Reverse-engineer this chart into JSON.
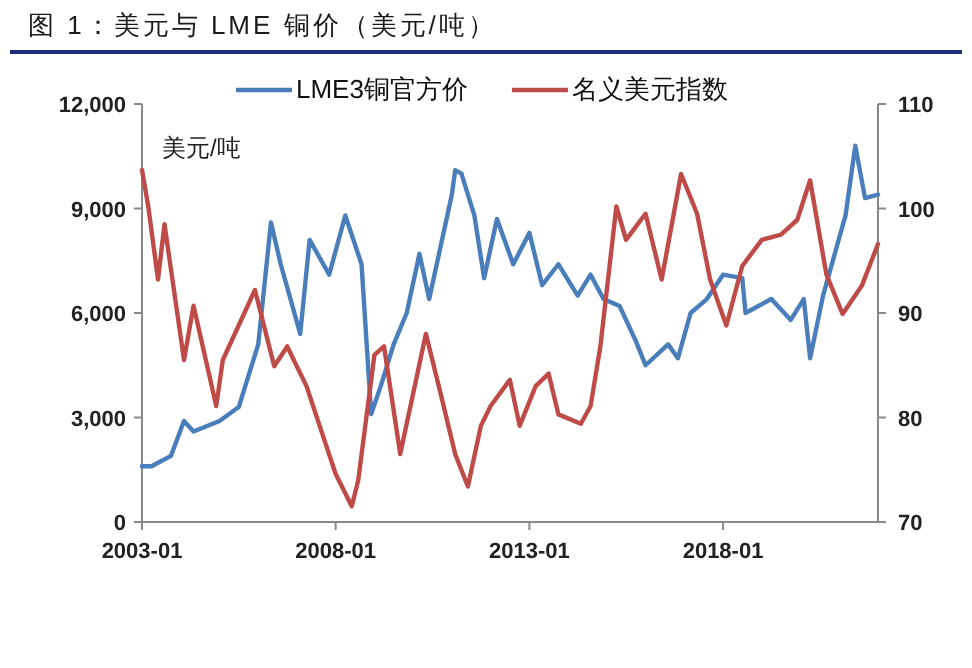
{
  "chart_data": {
    "type": "line",
    "title": "图 1：美元与 LME 铜价（美元/吨）",
    "ylabel": "美元/吨",
    "xlim": [
      "2003-01",
      "2022-01"
    ],
    "xticks": [
      "2003-01",
      "2008-01",
      "2013-01",
      "2018-01"
    ],
    "ylim": [
      0,
      12000
    ],
    "yticks": [
      {
        "value": 0,
        "label": "0"
      },
      {
        "value": 3000,
        "label": "3,000"
      },
      {
        "value": 6000,
        "label": "6,000"
      },
      {
        "value": 9000,
        "label": "9,000"
      },
      {
        "value": 12000,
        "label": "12,000"
      }
    ],
    "y2lim": [
      70,
      110
    ],
    "y2ticks": [
      70,
      80,
      90,
      100,
      110
    ],
    "legend": "top",
    "grid": false,
    "marker": "none",
    "line_style": "solid",
    "series": [
      {
        "name": "LME3铜官方价",
        "color": "#4a7ebb",
        "x": [
          "2003-01",
          "2003-04",
          "2003-10",
          "2004-02",
          "2004-05",
          "2005-01",
          "2005-07",
          "2006-01",
          "2006-05",
          "2006-08",
          "2007-02",
          "2007-05",
          "2007-11",
          "2008-04",
          "2008-09",
          "2008-12",
          "2009-03",
          "2009-07",
          "2009-11",
          "2010-03",
          "2010-06",
          "2011-01",
          "2011-02",
          "2011-04",
          "2011-08",
          "2011-11",
          "2012-03",
          "2012-08",
          "2013-01",
          "2013-05",
          "2013-10",
          "2014-04",
          "2014-08",
          "2014-12",
          "2015-05",
          "2015-10",
          "2016-01",
          "2016-08",
          "2016-11",
          "2017-03",
          "2017-08",
          "2018-01",
          "2018-07",
          "2018-08",
          "2019-04",
          "2019-10",
          "2020-02",
          "2020-04",
          "2020-08",
          "2021-03",
          "2021-06",
          "2021-09",
          "2022-01"
        ],
        "values": [
          1600,
          1600,
          1900,
          2900,
          2600,
          2900,
          3300,
          5100,
          8600,
          7400,
          5400,
          8100,
          7100,
          8800,
          7400,
          3100,
          3900,
          5100,
          6000,
          7700,
          6400,
          9400,
          10100,
          10000,
          8800,
          7000,
          8700,
          7400,
          8300,
          6800,
          7400,
          6500,
          7100,
          6400,
          6200,
          5200,
          4500,
          5100,
          4700,
          6000,
          6400,
          7100,
          7000,
          6000,
          6400,
          5800,
          6400,
          4700,
          6500,
          8800,
          10800,
          9300,
          9400
        ]
      },
      {
        "name": "名义美元指数",
        "color": "#be4b48",
        "axis": "y2",
        "x": [
          "2003-01",
          "2003-03",
          "2003-06",
          "2003-08",
          "2004-02",
          "2004-05",
          "2004-12",
          "2005-02",
          "2005-12",
          "2006-06",
          "2006-10",
          "2007-04",
          "2008-01",
          "2008-06",
          "2008-08",
          "2009-01",
          "2009-04",
          "2009-09",
          "2010-05",
          "2010-10",
          "2011-02",
          "2011-06",
          "2011-10",
          "2012-01",
          "2012-07",
          "2012-10",
          "2013-03",
          "2013-07",
          "2013-10",
          "2014-05",
          "2014-08",
          "2014-11",
          "2015-04",
          "2015-07",
          "2016-01",
          "2016-06",
          "2016-12",
          "2017-05",
          "2017-09",
          "2018-02",
          "2018-07",
          "2019-01",
          "2019-07",
          "2019-12",
          "2020-04",
          "2020-09",
          "2021-02",
          "2021-08",
          "2022-01"
        ],
        "values": [
          103.7,
          100.2,
          93.2,
          98.5,
          85.5,
          90.7,
          81.1,
          85.5,
          92.2,
          84.9,
          86.8,
          83.0,
          74.6,
          71.5,
          74.0,
          86.0,
          86.8,
          76.5,
          88.0,
          81.7,
          76.5,
          73.4,
          79.2,
          81.1,
          83.6,
          79.2,
          83.0,
          84.2,
          80.3,
          79.4,
          81.1,
          86.8,
          100.2,
          97.0,
          99.5,
          93.2,
          103.3,
          99.5,
          93.2,
          88.8,
          94.5,
          97.0,
          97.5,
          98.9,
          102.7,
          93.7,
          89.9,
          92.6,
          96.6
        ]
      }
    ]
  }
}
